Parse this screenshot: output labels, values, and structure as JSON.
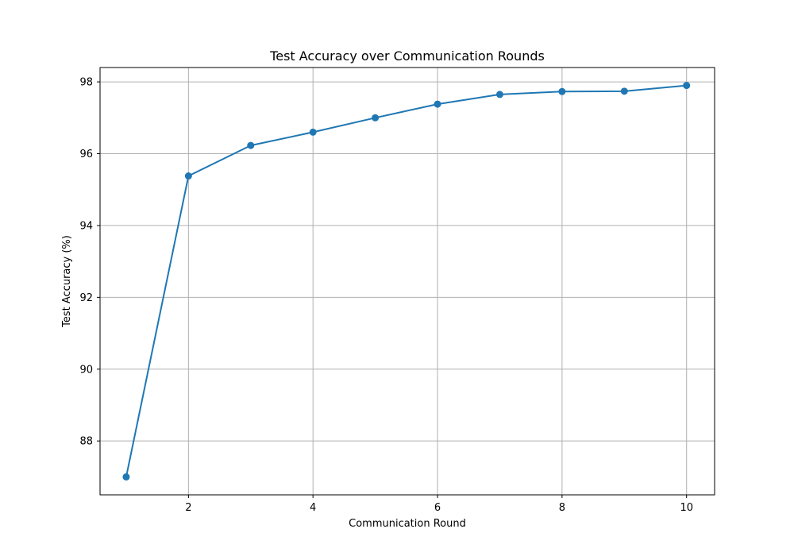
{
  "chart_data": {
    "type": "line",
    "title": "Test Accuracy over Communication Rounds",
    "xlabel": "Communication Round",
    "ylabel": "Test Accuracy (%)",
    "x": [
      1,
      2,
      3,
      4,
      5,
      6,
      7,
      8,
      9,
      10
    ],
    "series": [
      {
        "values": [
          87.0,
          95.38,
          96.23,
          96.6,
          97.0,
          97.38,
          97.65,
          97.73,
          97.74,
          97.9
        ],
        "color": "#1f77b4",
        "marker": "circle"
      }
    ],
    "xlim": [
      0.58,
      10.45
    ],
    "ylim": [
      86.5,
      98.4
    ],
    "xticks": [
      2,
      4,
      6,
      8,
      10
    ],
    "yticks": [
      88,
      90,
      92,
      94,
      96,
      98
    ],
    "xtick_labels": [
      "2",
      "4",
      "6",
      "8",
      "10"
    ],
    "ytick_labels": [
      "88",
      "90",
      "92",
      "94",
      "96",
      "98"
    ],
    "grid": true,
    "legend": "none"
  }
}
